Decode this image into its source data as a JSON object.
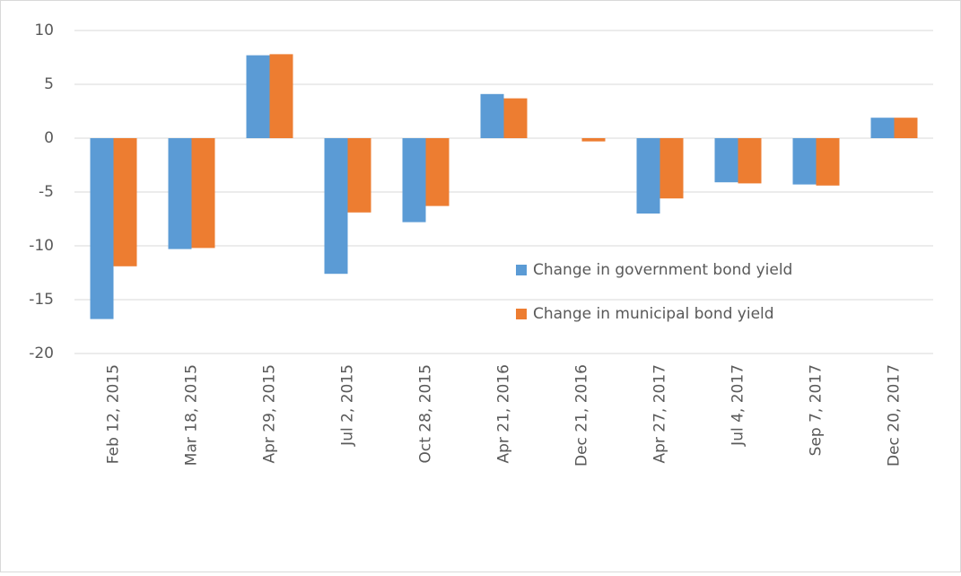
{
  "chart_data": {
    "type": "bar",
    "categories": [
      "Feb 12, 2015",
      "Mar 18, 2015",
      "Apr 29, 2015",
      "Jul 2, 2015",
      "Oct 28, 2015",
      "Apr 21, 2016",
      "Dec 21, 2016",
      "Apr 27, 2017",
      "Jul 4, 2017",
      "Sep 7, 2017",
      "Dec 20, 2017"
    ],
    "series": [
      {
        "name": "Change in government bond yield",
        "color": "#5b9bd5",
        "values": [
          -16.8,
          -10.3,
          7.7,
          -12.6,
          -7.8,
          4.1,
          0,
          -7.0,
          -4.1,
          -4.3,
          1.9
        ]
      },
      {
        "name": "Change in municipal bond yield",
        "color": "#ed7d31",
        "values": [
          -11.9,
          -10.2,
          7.8,
          -6.9,
          -6.3,
          3.7,
          -0.3,
          -5.6,
          -4.2,
          -4.4,
          1.9
        ]
      }
    ],
    "ylim": [
      -20,
      10
    ],
    "yticks": [
      -20,
      -15,
      -10,
      -5,
      0,
      5,
      10
    ],
    "grid": true,
    "legend": "inside"
  }
}
